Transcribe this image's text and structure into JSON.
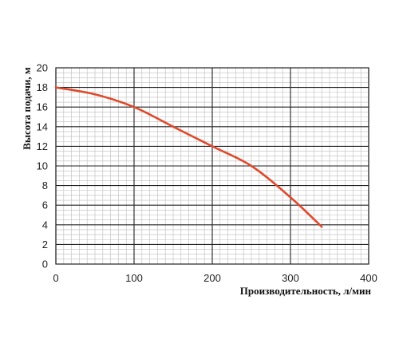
{
  "chart_data": {
    "type": "line",
    "title": "",
    "xlabel": "Производительность, л/мин",
    "ylabel": "Высота подачи, м",
    "xlim": [
      0,
      400
    ],
    "ylim": [
      0,
      20
    ],
    "x_major_ticks": [
      0,
      100,
      200,
      300,
      400
    ],
    "y_major_ticks": [
      0,
      2,
      4,
      6,
      8,
      10,
      12,
      14,
      16,
      18,
      20
    ],
    "x_minor_step": 10,
    "y_minor_step": 0.5,
    "grid": true,
    "line_color": "#e0492b",
    "series": [
      {
        "x": [
          0,
          50,
          100,
          150,
          200,
          250,
          300,
          340
        ],
        "y": [
          18,
          17.3,
          16,
          14,
          12,
          10,
          6.8,
          3.8
        ]
      }
    ]
  }
}
